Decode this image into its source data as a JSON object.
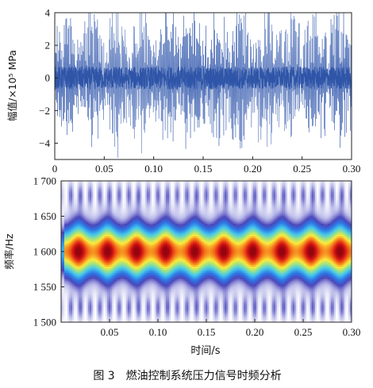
{
  "chart_data": [
    {
      "type": "line",
      "ylabel": "幅值/×10⁵ MPa",
      "xlabel": "",
      "xlim": [
        0,
        0.3
      ],
      "ylim": [
        -5,
        4
      ],
      "x_ticks": [
        "0",
        "0.05",
        "0.10",
        "0.15",
        "0.20",
        "0.25",
        "0.30"
      ],
      "y_ticks": [
        "4",
        "2",
        "0",
        "−2",
        "−4"
      ],
      "color": "#3a5fb0",
      "signal": {
        "carrier_hz": 1600,
        "envelope_peaks": 12,
        "core_amplitude": 1,
        "peak_amplitude": 4.5
      }
    },
    {
      "type": "heatmap",
      "ylabel": "频率/Hz",
      "xlabel": "时间/s",
      "xlim": [
        0,
        0.3
      ],
      "ylim": [
        1500,
        1700
      ],
      "x_ticks": [
        "0.05",
        "0.10",
        "0.15",
        "0.20",
        "0.25",
        "0.30"
      ],
      "y_ticks": [
        "1 700",
        "1 650",
        "1 600",
        "1 550",
        "1 500"
      ],
      "center_frequency_hz": 1600,
      "hotspot_times_s": [
        0.018,
        0.048,
        0.078,
        0.108,
        0.138,
        0.168,
        0.198,
        0.228,
        0.258,
        0.288
      ]
    }
  ],
  "caption": "图 3　燃油控制系统压力信号时频分析"
}
